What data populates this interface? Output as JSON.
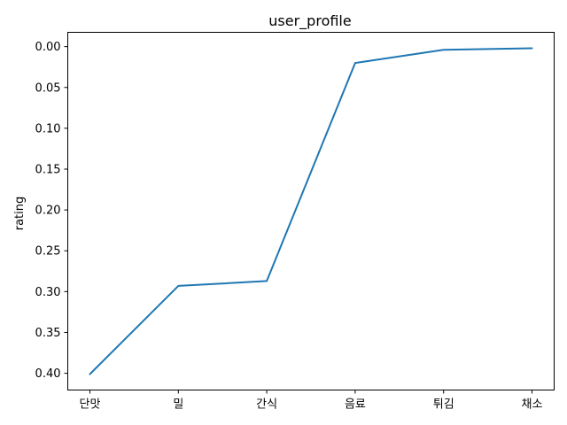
{
  "chart_data": {
    "type": "line",
    "title": "user_profile",
    "xlabel": "",
    "ylabel": "rating",
    "categories": [
      "단맛",
      "밀",
      "간식",
      "음료",
      "튀김",
      "채소"
    ],
    "series": [
      {
        "values": [
          0.401,
          0.293,
          0.287,
          0.02,
          0.004,
          0.002
        ]
      }
    ],
    "y_ticks": [
      "0.00",
      "0.05",
      "0.10",
      "0.15",
      "0.20",
      "0.25",
      "0.30",
      "0.35",
      "0.40"
    ],
    "y_tick_values": [
      0.0,
      0.05,
      0.1,
      0.15,
      0.2,
      0.25,
      0.3,
      0.35,
      0.4
    ],
    "ylim": [
      -0.0175,
      0.4205
    ],
    "y_inverted": true,
    "grid": false,
    "colors": {
      "series": "#1f77b4",
      "axis": "#000000"
    }
  }
}
